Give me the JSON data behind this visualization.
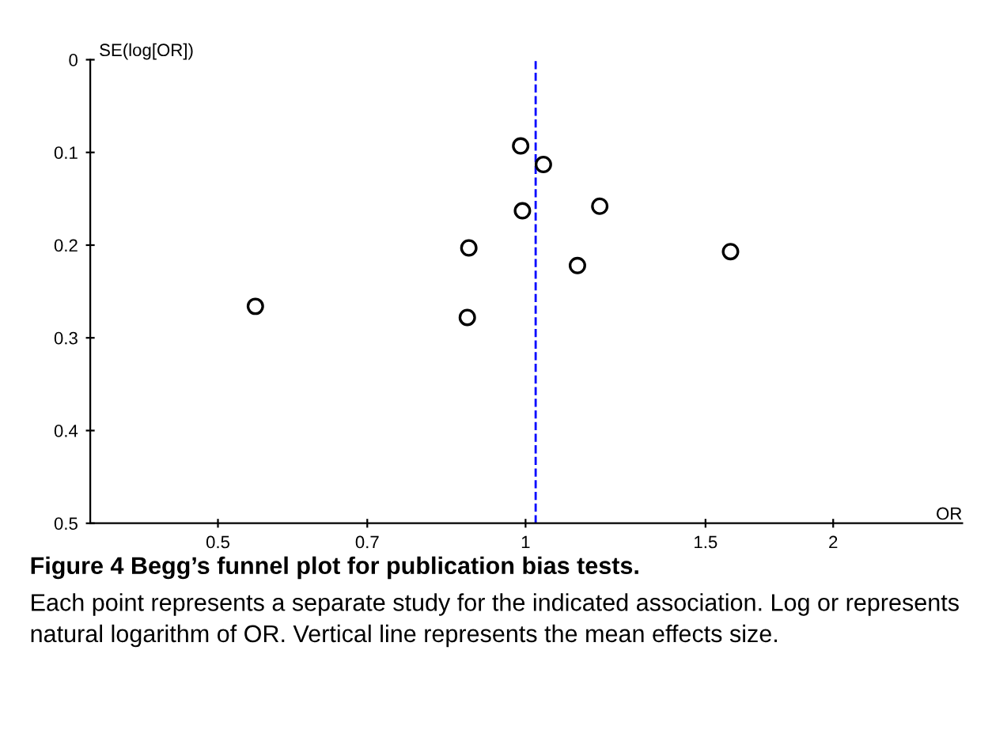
{
  "chart_data": {
    "type": "scatter",
    "xlabel": "OR",
    "ylabel": "SE(log[OR])",
    "log": "x",
    "x": [
      0.989,
      1.041,
      0.993,
      1.182,
      0.88,
      1.124,
      1.587,
      0.544,
      0.877
    ],
    "series": [
      {
        "color": "#000000",
        "values": [
          0.093,
          0.113,
          0.163,
          0.158,
          0.203,
          0.222,
          0.207,
          0.266,
          0.278
        ]
      }
    ],
    "marker": "circle",
    "grid": false,
    "legend": false,
    "xlim": [
      0.375,
      2.675
    ],
    "xticks": [
      0.5,
      0.7,
      1,
      1.5,
      2
    ],
    "ylim": [
      0.5,
      0
    ],
    "yticks": [
      0,
      0.1,
      0.2,
      0.3,
      0.4,
      0.5
    ],
    "ref_lines": [
      {
        "axis": "x",
        "value": 1.023,
        "color": "#0000ff",
        "line_style": "dashed"
      }
    ],
    "annotations": [
      "Figure 4 Begg’s funnel plot for publication bias tests.",
      "Each point represents a separate study for the indicated association. Log or represents natural logarithm of OR. Vertical line represents the mean effects size."
    ]
  }
}
